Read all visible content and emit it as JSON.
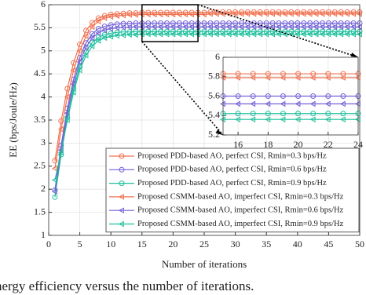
{
  "chart_data": {
    "type": "line",
    "xlabel": "Number of iterations",
    "ylabel": "EE (bps/Joule/Hz)",
    "caption": "nergy efficiency versus the number of iterations.",
    "xlim": [
      0,
      50
    ],
    "ylim": [
      1,
      6
    ],
    "xticks": [
      0,
      5,
      10,
      15,
      20,
      25,
      30,
      35,
      40,
      45,
      50
    ],
    "yticks": [
      1,
      1.5,
      2,
      2.5,
      3,
      3.5,
      4,
      4.5,
      5,
      5.5,
      6
    ],
    "grid": true,
    "x": [
      1,
      2,
      3,
      4,
      5,
      6,
      7,
      8,
      9,
      10,
      11,
      12,
      13,
      14,
      15,
      16,
      17,
      18,
      19,
      20,
      21,
      22,
      23,
      24,
      25,
      26,
      27,
      28,
      29,
      30,
      31,
      32,
      33,
      34,
      35,
      36,
      37,
      38,
      39,
      40,
      41,
      42,
      43,
      44,
      45,
      46,
      47,
      48,
      49,
      50
    ],
    "series": [
      {
        "name": "Proposed PDD-based AO, perfect CSI, Rmin=0.3 bps/Hz",
        "color": "#f07150",
        "marker": "circle",
        "values": [
          2.62,
          3.48,
          4.18,
          4.74,
          5.14,
          5.44,
          5.61,
          5.71,
          5.76,
          5.79,
          5.8,
          5.81,
          5.82,
          5.82,
          5.83,
          5.83,
          5.83,
          5.83,
          5.83,
          5.83,
          5.83,
          5.83,
          5.83,
          5.83,
          5.83,
          5.84,
          5.84,
          5.84,
          5.84,
          5.84,
          5.84,
          5.84,
          5.84,
          5.84,
          5.84,
          5.84,
          5.84,
          5.84,
          5.84,
          5.84,
          5.84,
          5.84,
          5.84,
          5.84,
          5.84,
          5.84,
          5.84,
          5.84,
          5.84,
          5.84
        ]
      },
      {
        "name": "Proposed PDD-based AO, perfect CSI, Rmin=0.6 bps/Hz",
        "color": "#7261d6",
        "marker": "circle",
        "values": [
          1.98,
          2.95,
          3.75,
          4.38,
          4.85,
          5.17,
          5.37,
          5.48,
          5.53,
          5.56,
          5.58,
          5.59,
          5.59,
          5.6,
          5.6,
          5.6,
          5.6,
          5.6,
          5.6,
          5.6,
          5.6,
          5.6,
          5.6,
          5.6,
          5.6,
          5.6,
          5.6,
          5.6,
          5.6,
          5.6,
          5.6,
          5.6,
          5.6,
          5.6,
          5.6,
          5.6,
          5.6,
          5.6,
          5.6,
          5.6,
          5.6,
          5.6,
          5.6,
          5.6,
          5.6,
          5.6,
          5.6,
          5.6,
          5.6,
          5.6
        ]
      },
      {
        "name": "Proposed PDD-based AO, perfect CSI, Rmin=0.9 bps/Hz",
        "color": "#1fbf9c",
        "marker": "circle",
        "values": [
          1.83,
          2.75,
          3.55,
          4.18,
          4.66,
          4.98,
          5.18,
          5.29,
          5.35,
          5.38,
          5.4,
          5.41,
          5.41,
          5.42,
          5.42,
          5.42,
          5.42,
          5.42,
          5.42,
          5.42,
          5.42,
          5.42,
          5.42,
          5.42,
          5.42,
          5.42,
          5.42,
          5.42,
          5.42,
          5.42,
          5.42,
          5.42,
          5.42,
          5.42,
          5.42,
          5.42,
          5.42,
          5.42,
          5.42,
          5.42,
          5.42,
          5.42,
          5.42,
          5.42,
          5.42,
          5.42,
          5.42,
          5.42,
          5.42,
          5.42
        ]
      },
      {
        "name": "Proposed CSMM-based AO, imperfect CSI, Rmin=0.3 bps/Hz",
        "color": "#f07150",
        "marker": "triangle",
        "values": [
          2.45,
          3.3,
          4.0,
          4.58,
          5.0,
          5.32,
          5.52,
          5.64,
          5.71,
          5.74,
          5.76,
          5.77,
          5.78,
          5.78,
          5.79,
          5.79,
          5.79,
          5.79,
          5.79,
          5.79,
          5.79,
          5.79,
          5.79,
          5.79,
          5.79,
          5.8,
          5.8,
          5.8,
          5.8,
          5.8,
          5.8,
          5.8,
          5.8,
          5.8,
          5.8,
          5.8,
          5.8,
          5.8,
          5.8,
          5.8,
          5.8,
          5.8,
          5.8,
          5.8,
          5.8,
          5.8,
          5.8,
          5.8,
          5.8,
          5.8
        ]
      },
      {
        "name": "Proposed CSMM-based AO, imperfect CSI, Rmin=0.6 bps/Hz",
        "color": "#7261d6",
        "marker": "triangle",
        "values": [
          1.95,
          2.85,
          3.65,
          4.28,
          4.76,
          5.08,
          5.28,
          5.39,
          5.45,
          5.48,
          5.5,
          5.51,
          5.51,
          5.52,
          5.52,
          5.52,
          5.52,
          5.52,
          5.52,
          5.52,
          5.52,
          5.52,
          5.52,
          5.52,
          5.52,
          5.52,
          5.52,
          5.52,
          5.52,
          5.52,
          5.52,
          5.52,
          5.52,
          5.52,
          5.52,
          5.52,
          5.52,
          5.52,
          5.52,
          5.52,
          5.52,
          5.52,
          5.52,
          5.52,
          5.52,
          5.52,
          5.52,
          5.52,
          5.52,
          5.52
        ]
      },
      {
        "name": "Proposed CSMM-based AO, imperfect CSI, Rmin=0.9 bps/Hz",
        "color": "#1fbf9c",
        "marker": "triangle",
        "values": [
          2.2,
          2.8,
          3.5,
          4.1,
          4.58,
          4.9,
          5.1,
          5.22,
          5.28,
          5.31,
          5.33,
          5.34,
          5.35,
          5.35,
          5.36,
          5.36,
          5.36,
          5.36,
          5.36,
          5.36,
          5.36,
          5.36,
          5.36,
          5.36,
          5.36,
          5.36,
          5.36,
          5.36,
          5.36,
          5.36,
          5.36,
          5.36,
          5.36,
          5.36,
          5.36,
          5.36,
          5.36,
          5.36,
          5.36,
          5.36,
          5.36,
          5.36,
          5.36,
          5.36,
          5.36,
          5.36,
          5.36,
          5.36,
          5.36,
          5.36
        ]
      }
    ],
    "inset": {
      "xlim": [
        15,
        24
      ],
      "ylim": [
        5.2,
        6
      ],
      "xticks": [
        16,
        18,
        20,
        22,
        24
      ],
      "yticks": [
        5.2,
        5.4,
        5.6,
        5.8,
        6
      ]
    }
  }
}
